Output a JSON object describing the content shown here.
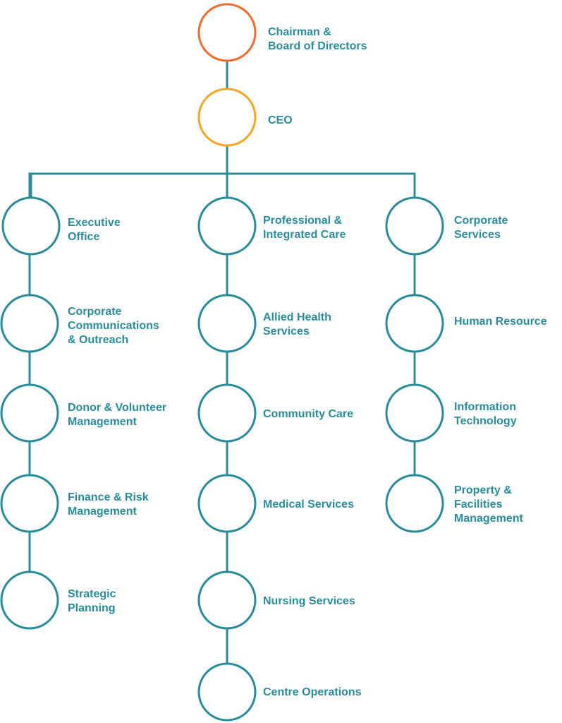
{
  "colors": {
    "teal": "#2a8c99",
    "orange": "#ef6c2e",
    "amber": "#f5a623",
    "skin": "#ffffff"
  },
  "nodes": [
    {
      "id": "chairman",
      "label": "Chairman &\nBoard of Directors",
      "icon": "man-icon",
      "color": "orange"
    },
    {
      "id": "ceo",
      "label": "CEO",
      "icon": "man-icon",
      "color": "amber"
    },
    {
      "id": "executive-office",
      "label": "Executive\nOffice",
      "icon": "lightbulb-brain-icon",
      "color": "teal"
    },
    {
      "id": "professional-care",
      "label": "Professional &\nIntegrated Care",
      "icon": "stethoscope-heart-icon",
      "color": "teal"
    },
    {
      "id": "corporate-services",
      "label": "Corporate\nServices",
      "icon": "hands-heart-icon",
      "color": "teal"
    },
    {
      "id": "corp-comms",
      "label": "Corporate\nCommunications\n& Outreach",
      "icon": "woman-icon",
      "color": "teal"
    },
    {
      "id": "donor-volunteer",
      "label": "Donor & Volunteer\nManagement",
      "icon": "woman-icon",
      "color": "teal"
    },
    {
      "id": "finance-risk",
      "label": "Finance & Risk\nManagement",
      "icon": "woman-icon",
      "color": "teal"
    },
    {
      "id": "strategic-planning",
      "label": "Strategic\nPlanning",
      "icon": "woman-icon",
      "color": "teal"
    },
    {
      "id": "allied-health",
      "label": "Allied Health\nServices",
      "icon": "man-icon",
      "color": "teal"
    },
    {
      "id": "community-care",
      "label": "Community Care",
      "icon": "man-icon",
      "color": "teal"
    },
    {
      "id": "medical-services",
      "label": "Medical Services",
      "icon": "man-icon",
      "color": "teal"
    },
    {
      "id": "nursing-services",
      "label": "Nursing Services",
      "icon": "woman-icon",
      "color": "teal"
    },
    {
      "id": "centre-operations",
      "label": "Centre Operations",
      "icon": "man-icon",
      "color": "teal"
    },
    {
      "id": "human-resource",
      "label": "Human Resource",
      "icon": "man-icon",
      "color": "teal"
    },
    {
      "id": "information-technology",
      "label": "Information\nTechnology",
      "icon": "man-icon",
      "color": "teal"
    },
    {
      "id": "property-facilities",
      "label": "Property &\nFacilities\nManagement",
      "icon": "woman-icon",
      "color": "teal"
    }
  ],
  "edges": [
    [
      "chairman",
      "ceo"
    ],
    [
      "ceo",
      "executive-office"
    ],
    [
      "ceo",
      "professional-care"
    ],
    [
      "ceo",
      "corporate-services"
    ],
    [
      "executive-office",
      "corp-comms"
    ],
    [
      "corp-comms",
      "donor-volunteer"
    ],
    [
      "donor-volunteer",
      "finance-risk"
    ],
    [
      "finance-risk",
      "strategic-planning"
    ],
    [
      "professional-care",
      "allied-health"
    ],
    [
      "allied-health",
      "community-care"
    ],
    [
      "community-care",
      "medical-services"
    ],
    [
      "medical-services",
      "nursing-services"
    ],
    [
      "nursing-services",
      "centre-operations"
    ],
    [
      "corporate-services",
      "human-resource"
    ],
    [
      "human-resource",
      "information-technology"
    ],
    [
      "information-technology",
      "property-facilities"
    ]
  ]
}
